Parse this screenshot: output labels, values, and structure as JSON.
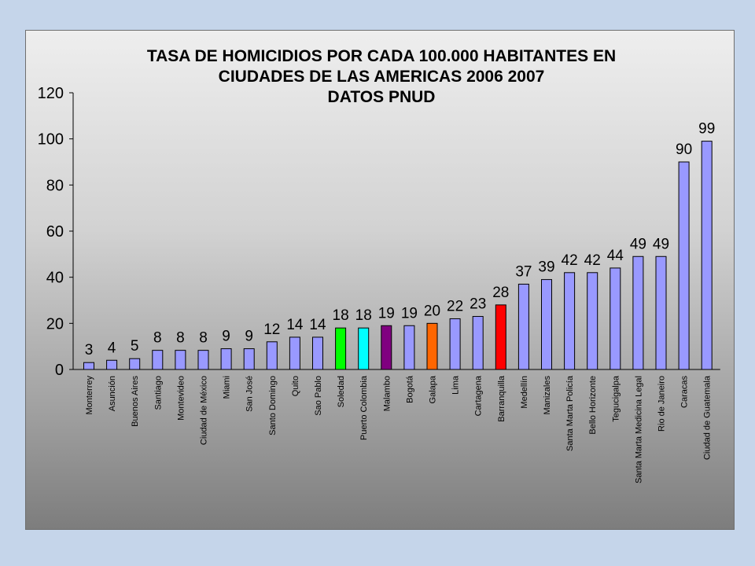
{
  "chart_data": {
    "type": "bar",
    "title_lines": [
      "TASA DE HOMICIDIOS POR CADA 100.000 HABITANTES EN",
      "CIUDADES DE LAS AMERICAS 2006 2007",
      "DATOS PNUD"
    ],
    "categories": [
      "Monterrey",
      "Asunción",
      "Buenos Aires",
      "Santiago",
      "Montevideo",
      "Ciudad de México",
      "Miami",
      "San José",
      "Santo Domingo",
      "Quito",
      "Sao Pablo",
      "Soledad",
      "Puerto Colombia",
      "Malambo",
      "Bogotá",
      "Galapa",
      "Lima",
      "Cartagena",
      "Barranquilla",
      "Medellín",
      "Manizales",
      "Santa Marta Policía",
      "Bello Horizonte",
      "Tegucigalpa",
      "Santa Marta Medicina Legal",
      "Rio de Janeiro",
      "Caracas",
      "Ciudad de Guatemala"
    ],
    "values": [
      3,
      4,
      5,
      8,
      8,
      8,
      9,
      9,
      12,
      14,
      14,
      18,
      18,
      19,
      19,
      20,
      22,
      23,
      28,
      37,
      39,
      42,
      42,
      44,
      49,
      49,
      90,
      99
    ],
    "plotted_values": [
      3,
      4,
      4.7,
      8.3,
      8.3,
      8.3,
      9,
      9,
      12,
      14,
      14,
      18,
      18,
      19,
      19,
      20,
      22,
      23,
      28,
      37,
      39,
      42,
      42,
      44,
      49,
      49,
      90,
      99
    ],
    "data_labels": [
      "3",
      "4",
      "5",
      "8",
      "8",
      "8",
      "9",
      "9",
      "12",
      "14",
      "14",
      "18",
      "18",
      "19",
      "19",
      "20",
      "22",
      "23",
      "28",
      "37",
      "39",
      "42",
      "42",
      "44",
      "49",
      "49",
      "90",
      "99"
    ],
    "bar_colors": [
      "#9999ff",
      "#9999ff",
      "#9999ff",
      "#9999ff",
      "#9999ff",
      "#9999ff",
      "#9999ff",
      "#9999ff",
      "#9999ff",
      "#9999ff",
      "#9999ff",
      "#00ff00",
      "#00ffff",
      "#800080",
      "#9999ff",
      "#ff6600",
      "#9999ff",
      "#9999ff",
      "#ff0000",
      "#9999ff",
      "#9999ff",
      "#9999ff",
      "#9999ff",
      "#9999ff",
      "#9999ff",
      "#9999ff",
      "#9999ff",
      "#9999ff"
    ],
    "ylim": [
      0,
      120
    ],
    "yticks": [
      0,
      20,
      40,
      60,
      80,
      100,
      120
    ],
    "xlabel": "",
    "ylabel": "",
    "grid": false,
    "legend": "none"
  },
  "colors": {
    "background": "#c5d5ea",
    "bar_default": "#9999ff",
    "bar_outline": "#000000"
  }
}
